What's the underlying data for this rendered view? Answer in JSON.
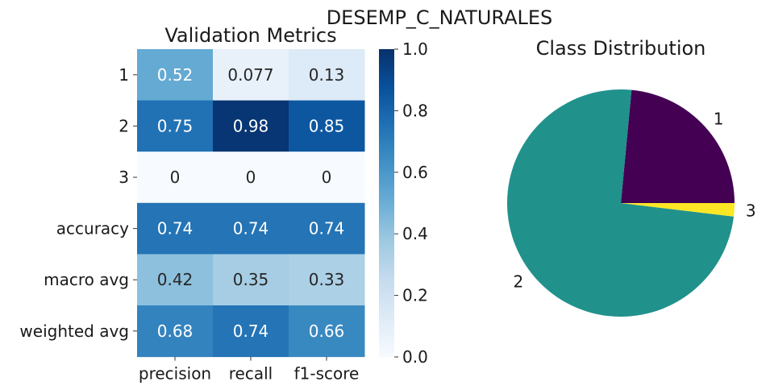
{
  "suptitle": "DESEMP_C_NATURALES",
  "chart_data": [
    {
      "type": "heatmap",
      "title": "Validation Metrics",
      "columns": [
        "precision",
        "recall",
        "f1-score"
      ],
      "rows": [
        "1",
        "2",
        "3",
        "accuracy",
        "macro avg",
        "weighted avg"
      ],
      "values": [
        [
          0.52,
          0.077,
          0.13
        ],
        [
          0.75,
          0.98,
          0.85
        ],
        [
          0,
          0,
          0
        ],
        [
          0.74,
          0.74,
          0.74
        ],
        [
          0.42,
          0.35,
          0.33
        ],
        [
          0.68,
          0.74,
          0.66
        ]
      ],
      "cell_labels": [
        [
          "0.52",
          "0.077",
          "0.13"
        ],
        [
          "0.75",
          "0.98",
          "0.85"
        ],
        [
          "0",
          "0",
          "0"
        ],
        [
          "0.74",
          "0.74",
          "0.74"
        ],
        [
          "0.42",
          "0.35",
          "0.33"
        ],
        [
          "0.68",
          "0.74",
          "0.66"
        ]
      ],
      "colormap": "Blues",
      "colorbar": {
        "range": [
          0,
          1
        ],
        "ticks": [
          0.0,
          0.2,
          0.4,
          0.6,
          0.8,
          1.0
        ],
        "tick_labels": [
          "0.0",
          "0.2",
          "0.4",
          "0.6",
          "0.8",
          "1.0"
        ]
      }
    },
    {
      "type": "pie",
      "title": "Class Distribution",
      "labels": [
        "1",
        "2",
        "3"
      ],
      "values": [
        0.235,
        0.746,
        0.019
      ],
      "colors": [
        "#440154",
        "#21918c",
        "#fde725"
      ],
      "startangle_deg": 0,
      "direction": "counterclockwise"
    }
  ]
}
